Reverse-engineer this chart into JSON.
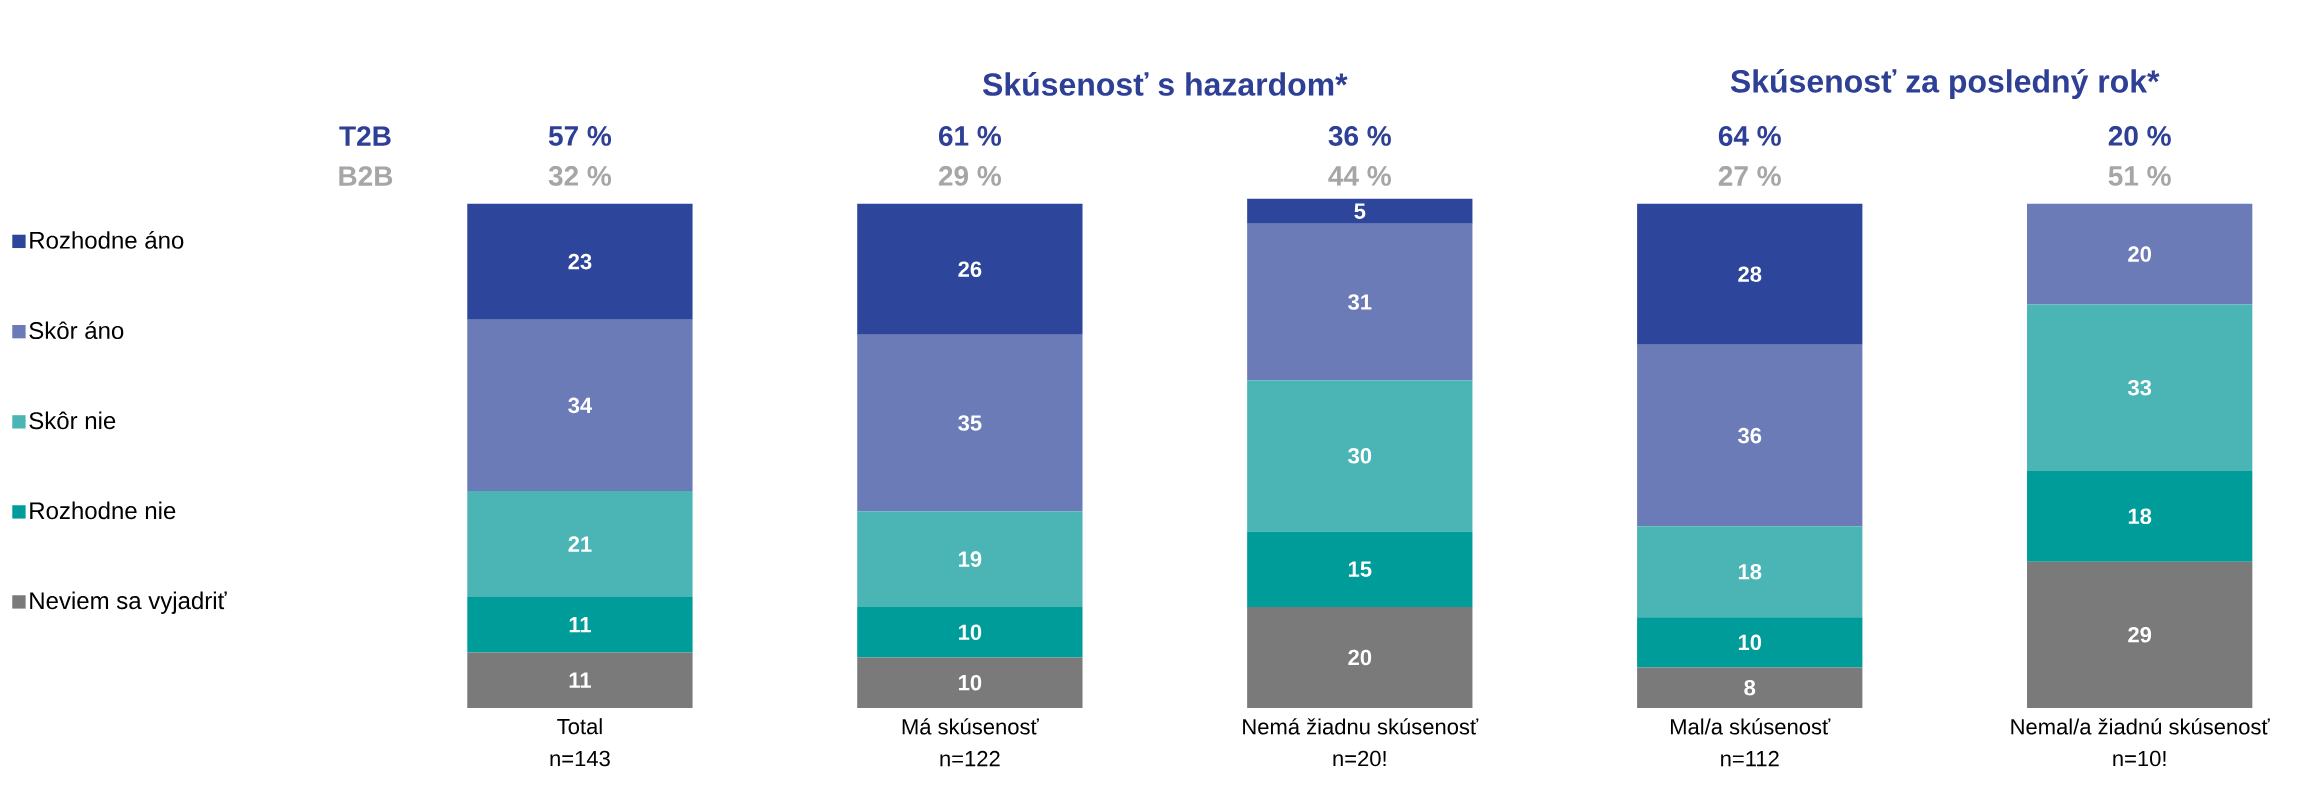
{
  "chart_data": {
    "type": "bar",
    "stacked": true,
    "legend": "left",
    "categories": [
      "Total",
      "Má skúsenosť",
      "Nemá žiadnu skúsenosť",
      "Mal/a skúsenosť",
      "Nemal/a žiadnú skúsenosť"
    ],
    "series": [
      {
        "name": "Neviem sa vyjadriť",
        "color": "#7a7a7a",
        "values": [
          11,
          10,
          20,
          8,
          29
        ],
        "value_labels": [
          "11",
          "10",
          "20",
          "8",
          "29"
        ]
      },
      {
        "name": "Rozhodne nie",
        "color": "#009c9a",
        "values": [
          11,
          10,
          15,
          10,
          18
        ],
        "value_labels": [
          "11",
          "10",
          "15",
          "10",
          "18"
        ]
      },
      {
        "name": "Skôr nie",
        "color": "#4bb5b5",
        "values": [
          21,
          19,
          30,
          18,
          33
        ],
        "value_labels": [
          "21",
          "19",
          "30",
          "18",
          "33"
        ]
      },
      {
        "name": "Skôr áno",
        "color": "#6b7bb8",
        "values": [
          34,
          35,
          31,
          36,
          20
        ],
        "value_labels": [
          "34",
          "35",
          "31",
          "36",
          "20"
        ]
      },
      {
        "name": "Rozhodne áno",
        "color": "#2e459c",
        "values": [
          23,
          26,
          5,
          28,
          null
        ],
        "value_labels": [
          "23",
          "26",
          "5",
          "28",
          null
        ]
      }
    ],
    "annotations": [
      "T2B",
      "57 %",
      "61 %",
      "36 %",
      "64 %",
      "20 %",
      "B2B",
      "32 %",
      "29 %",
      "44 %",
      "27 %",
      "51 %",
      "Skúsenosť s hazardom*",
      "Skúsenosť za posledný rok*",
      "n=143",
      "n=122",
      "n=20!",
      "n=112",
      "n=10!"
    ]
  }
}
